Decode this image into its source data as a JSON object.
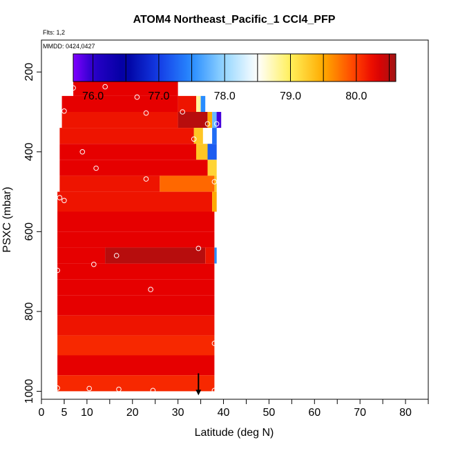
{
  "chart_data": {
    "type": "heatmap",
    "title": "ATOM4 Northeast_Pacific_1 CCl4_PFP",
    "annotations": [
      "Flts: 1,2",
      "MMDD: 0424,0427"
    ],
    "xlabel": "Latitude (deg N)",
    "ylabel": "PSXC (mbar)",
    "xlim": [
      0,
      85
    ],
    "ylim": [
      1020,
      120
    ],
    "x_ticks_major": [
      0,
      5,
      10,
      20,
      30,
      40,
      50,
      60,
      70,
      80
    ],
    "x_ticks_minor": [
      5,
      15,
      25,
      35,
      45,
      55,
      65,
      75,
      85
    ],
    "y_ticks": [
      200,
      400,
      600,
      800,
      1000
    ],
    "colorbar": {
      "range": [
        75.7,
        80.6
      ],
      "ticks": [
        "76.0",
        "77.0",
        "78.0",
        "79.0",
        "80.0"
      ],
      "tick_values": [
        76.0,
        77.0,
        78.0,
        79.0,
        80.0
      ],
      "box_edges": [
        75.7,
        76.0,
        76.5,
        77.0,
        77.5,
        78.0,
        78.5,
        79.0,
        79.5,
        80.0,
        80.5,
        80.6
      ]
    },
    "field_rows": [
      {
        "p_top": 180,
        "p_bot": 220,
        "segments": [
          {
            "lat0": 29.5,
            "lat1": 30.0,
            "value": 80.3
          }
        ]
      },
      {
        "p_top": 220,
        "p_bot": 260,
        "segments": [
          {
            "lat0": 7.0,
            "lat1": 30.0,
            "value": 80.3
          }
        ]
      },
      {
        "p_top": 260,
        "p_bot": 300,
        "segments": [
          {
            "lat0": 4.5,
            "lat1": 30.0,
            "value": 80.3
          },
          {
            "lat0": 30.0,
            "lat1": 34.0,
            "value": 80.2
          },
          {
            "lat0": 34.0,
            "lat1": 35.0,
            "value": 78.8
          },
          {
            "lat0": 35.0,
            "lat1": 36.0,
            "value": 77.5
          }
        ]
      },
      {
        "p_top": 300,
        "p_bot": 340,
        "segments": [
          {
            "lat0": 4.5,
            "lat1": 30.0,
            "value": 80.2
          },
          {
            "lat0": 30.0,
            "lat1": 36.5,
            "value": 80.5
          },
          {
            "lat0": 36.5,
            "lat1": 37.5,
            "value": 79.5
          },
          {
            "lat0": 37.5,
            "lat1": 38.5,
            "value": 77.8
          },
          {
            "lat0": 38.5,
            "lat1": 39.5,
            "value": 75.9
          }
        ]
      },
      {
        "p_top": 340,
        "p_bot": 380,
        "segments": [
          {
            "lat0": 4.0,
            "lat1": 33.5,
            "value": 80.2
          },
          {
            "lat0": 33.5,
            "lat1": 35.5,
            "value": 79.3
          },
          {
            "lat0": 35.5,
            "lat1": 37.5,
            "value": 78.5
          },
          {
            "lat0": 37.5,
            "lat1": 38.5,
            "value": 77.3
          }
        ]
      },
      {
        "p_top": 380,
        "p_bot": 420,
        "segments": [
          {
            "lat0": 4.0,
            "lat1": 34.0,
            "value": 80.3
          },
          {
            "lat0": 34.0,
            "lat1": 36.5,
            "value": 79.3
          },
          {
            "lat0": 36.5,
            "lat1": 38.5,
            "value": 77.2
          }
        ]
      },
      {
        "p_top": 420,
        "p_bot": 460,
        "segments": [
          {
            "lat0": 4.0,
            "lat1": 36.5,
            "value": 80.3
          },
          {
            "lat0": 36.5,
            "lat1": 38.5,
            "value": 79.2
          }
        ]
      },
      {
        "p_top": 460,
        "p_bot": 500,
        "segments": [
          {
            "lat0": 4.0,
            "lat1": 26.0,
            "value": 80.2
          },
          {
            "lat0": 26.0,
            "lat1": 38.0,
            "value": 79.8
          },
          {
            "lat0": 38.0,
            "lat1": 38.5,
            "value": 79.3
          }
        ]
      },
      {
        "p_top": 500,
        "p_bot": 550,
        "segments": [
          {
            "lat0": 3.5,
            "lat1": 37.5,
            "value": 80.2
          },
          {
            "lat0": 37.5,
            "lat1": 38.5,
            "value": 79.5
          }
        ]
      },
      {
        "p_top": 550,
        "p_bot": 600,
        "segments": [
          {
            "lat0": 3.5,
            "lat1": 38.0,
            "value": 80.3
          }
        ]
      },
      {
        "p_top": 600,
        "p_bot": 640,
        "segments": [
          {
            "lat0": 3.5,
            "lat1": 38.0,
            "value": 80.3
          }
        ]
      },
      {
        "p_top": 640,
        "p_bot": 680,
        "segments": [
          {
            "lat0": 3.5,
            "lat1": 14.0,
            "value": 80.3
          },
          {
            "lat0": 14.0,
            "lat1": 36.0,
            "value": 80.5
          },
          {
            "lat0": 36.0,
            "lat1": 38.0,
            "value": 80.2
          },
          {
            "lat0": 38.0,
            "lat1": 38.5,
            "value": 77.5
          }
        ]
      },
      {
        "p_top": 680,
        "p_bot": 720,
        "segments": [
          {
            "lat0": 3.5,
            "lat1": 38.0,
            "value": 80.3
          }
        ]
      },
      {
        "p_top": 720,
        "p_bot": 760,
        "segments": [
          {
            "lat0": 3.5,
            "lat1": 38.0,
            "value": 80.3
          }
        ]
      },
      {
        "p_top": 760,
        "p_bot": 810,
        "segments": [
          {
            "lat0": 3.5,
            "lat1": 38.0,
            "value": 80.3
          }
        ]
      },
      {
        "p_top": 810,
        "p_bot": 860,
        "segments": [
          {
            "lat0": 3.5,
            "lat1": 38.0,
            "value": 80.2
          }
        ]
      },
      {
        "p_top": 860,
        "p_bot": 910,
        "segments": [
          {
            "lat0": 3.5,
            "lat1": 38.0,
            "value": 80.1
          }
        ]
      },
      {
        "p_top": 910,
        "p_bot": 960,
        "segments": [
          {
            "lat0": 3.5,
            "lat1": 38.0,
            "value": 80.3
          }
        ]
      },
      {
        "p_top": 960,
        "p_bot": 1000,
        "segments": [
          {
            "lat0": 3.5,
            "lat1": 38.0,
            "value": 80.1
          }
        ]
      }
    ],
    "sample_points": [
      {
        "lat": 29.5,
        "p": 197
      },
      {
        "lat": 7.0,
        "p": 240
      },
      {
        "lat": 14.0,
        "p": 237
      },
      {
        "lat": 21.0,
        "p": 263
      },
      {
        "lat": 5.0,
        "p": 298
      },
      {
        "lat": 23.0,
        "p": 303
      },
      {
        "lat": 31.0,
        "p": 300
      },
      {
        "lat": 36.5,
        "p": 330
      },
      {
        "lat": 38.5,
        "p": 330
      },
      {
        "lat": 33.5,
        "p": 368
      },
      {
        "lat": 9.0,
        "p": 400
      },
      {
        "lat": 12.0,
        "p": 441
      },
      {
        "lat": 23.0,
        "p": 468
      },
      {
        "lat": 38.0,
        "p": 475
      },
      {
        "lat": 4.0,
        "p": 515
      },
      {
        "lat": 5.0,
        "p": 522
      },
      {
        "lat": 34.5,
        "p": 642
      },
      {
        "lat": 16.5,
        "p": 660
      },
      {
        "lat": 11.5,
        "p": 682
      },
      {
        "lat": 3.5,
        "p": 697
      },
      {
        "lat": 24.0,
        "p": 745
      },
      {
        "lat": 38.0,
        "p": 880
      },
      {
        "lat": 3.5,
        "p": 992
      },
      {
        "lat": 10.5,
        "p": 993
      },
      {
        "lat": 17.0,
        "p": 995
      },
      {
        "lat": 24.5,
        "p": 998
      },
      {
        "lat": 38.0,
        "p": 998
      }
    ],
    "arrow_marker": {
      "lat": 34.5,
      "p_from": 955,
      "p_to": 1010
    }
  }
}
